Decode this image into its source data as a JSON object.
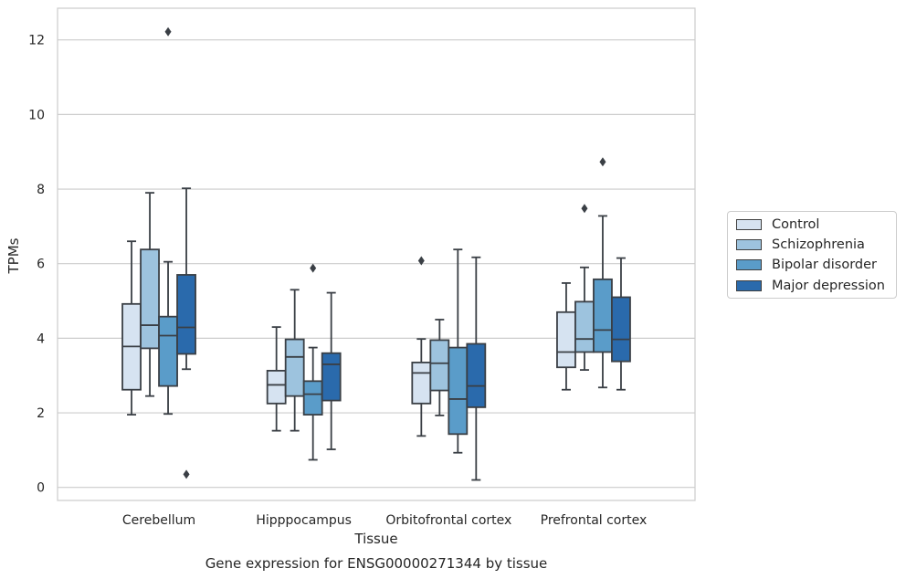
{
  "chart_data": {
    "type": "box",
    "title": "",
    "caption": "Gene expression for ENSG00000271344 by tissue",
    "xlabel": "Tissue",
    "ylabel": "TPMs",
    "ylim": [
      -0.35,
      12.85
    ],
    "yticks": [
      "0",
      "2",
      "4",
      "6",
      "8",
      "10",
      "12"
    ],
    "grid": "horizontal",
    "legend_position": "right",
    "categories": [
      "Cerebellum",
      "Hipppocampus",
      "Orbitofrontal cortex",
      "Prefrontal cortex"
    ],
    "series": [
      {
        "name": "Control",
        "color": "#d6e3f1",
        "boxes": [
          {
            "whisker_low": 1.95,
            "q1": 2.62,
            "median": 3.78,
            "q3": 4.92,
            "whisker_high": 6.6,
            "outliers": []
          },
          {
            "whisker_low": 1.52,
            "q1": 2.25,
            "median": 2.75,
            "q3": 3.13,
            "whisker_high": 4.3,
            "outliers": []
          },
          {
            "whisker_low": 1.38,
            "q1": 2.25,
            "median": 3.07,
            "q3": 3.35,
            "whisker_high": 3.98,
            "outliers": [
              6.08
            ]
          },
          {
            "whisker_low": 2.62,
            "q1": 3.22,
            "median": 3.63,
            "q3": 4.7,
            "whisker_high": 5.48,
            "outliers": []
          }
        ]
      },
      {
        "name": "Schizophrenia",
        "color": "#9dc3de",
        "boxes": [
          {
            "whisker_low": 2.45,
            "q1": 3.73,
            "median": 4.35,
            "q3": 6.38,
            "whisker_high": 7.9,
            "outliers": []
          },
          {
            "whisker_low": 1.52,
            "q1": 2.45,
            "median": 3.5,
            "q3": 3.97,
            "whisker_high": 5.3,
            "outliers": []
          },
          {
            "whisker_low": 1.93,
            "q1": 2.6,
            "median": 3.33,
            "q3": 3.95,
            "whisker_high": 4.5,
            "outliers": []
          },
          {
            "whisker_low": 3.15,
            "q1": 3.63,
            "median": 3.98,
            "q3": 4.98,
            "whisker_high": 5.9,
            "outliers": [
              7.48
            ]
          }
        ]
      },
      {
        "name": "Bipolar disorder",
        "color": "#5a9cc9",
        "boxes": [
          {
            "whisker_low": 1.97,
            "q1": 2.72,
            "median": 4.07,
            "q3": 4.58,
            "whisker_high": 6.05,
            "outliers": [
              12.22
            ]
          },
          {
            "whisker_low": 0.74,
            "q1": 1.95,
            "median": 2.5,
            "q3": 2.85,
            "whisker_high": 3.75,
            "outliers": [
              5.88
            ]
          },
          {
            "whisker_low": 0.93,
            "q1": 1.43,
            "median": 2.37,
            "q3": 3.75,
            "whisker_high": 6.38,
            "outliers": []
          },
          {
            "whisker_low": 2.68,
            "q1": 3.63,
            "median": 4.22,
            "q3": 5.58,
            "whisker_high": 7.28,
            "outliers": [
              8.73
            ]
          }
        ]
      },
      {
        "name": "Major depression",
        "color": "#2a6aac",
        "boxes": [
          {
            "whisker_low": 3.17,
            "q1": 3.58,
            "median": 4.29,
            "q3": 5.7,
            "whisker_high": 8.02,
            "outliers": [
              0.35
            ]
          },
          {
            "whisker_low": 1.02,
            "q1": 2.33,
            "median": 3.3,
            "q3": 3.6,
            "whisker_high": 5.22,
            "outliers": []
          },
          {
            "whisker_low": 0.2,
            "q1": 2.15,
            "median": 2.72,
            "q3": 3.85,
            "whisker_high": 6.17,
            "outliers": []
          },
          {
            "whisker_low": 2.62,
            "q1": 3.38,
            "median": 3.97,
            "q3": 5.1,
            "whisker_high": 6.15,
            "outliers": []
          }
        ]
      }
    ]
  }
}
